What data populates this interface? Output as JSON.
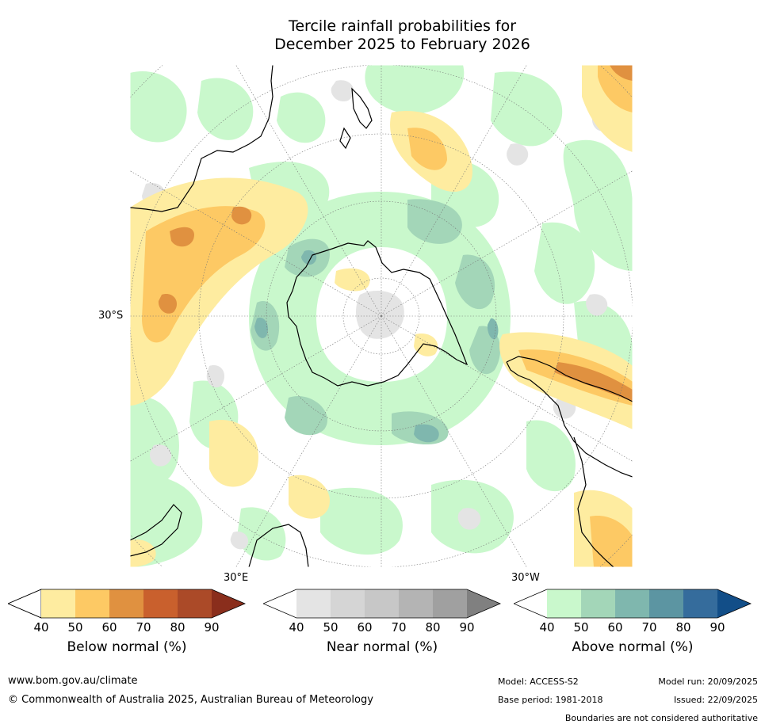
{
  "title": {
    "line1": "Tercile rainfall probabilities for",
    "line2": "December 2025 to February 2026"
  },
  "map": {
    "projection": "south-polar stereographic",
    "lat_label": "30°S",
    "lon_label_left": "30°E",
    "lon_label_right": "30°W"
  },
  "colorbars": [
    {
      "label": "Below normal (%)",
      "ticks": [
        "40",
        "50",
        "60",
        "70",
        "80",
        "90"
      ],
      "colors": [
        "#ffffff",
        "#feeca0",
        "#fdc964",
        "#e09140",
        "#c9602d",
        "#ab4a28",
        "#8a2e1c"
      ]
    },
    {
      "label": "Near normal (%)",
      "ticks": [
        "40",
        "50",
        "60",
        "70",
        "80",
        "90"
      ],
      "colors": [
        "#ffffff",
        "#e4e4e4",
        "#d5d5d5",
        "#c7c7c7",
        "#b4b4b4",
        "#a0a0a0",
        "#808080"
      ]
    },
    {
      "label": "Above normal (%)",
      "ticks": [
        "40",
        "50",
        "60",
        "70",
        "80",
        "90"
      ],
      "colors": [
        "#ffffff",
        "#c9f8cc",
        "#a3d6b8",
        "#7fb7ae",
        "#5c95a2",
        "#356c9c",
        "#124e88"
      ]
    }
  ],
  "footer": {
    "website": "www.bom.gov.au/climate",
    "copyright": "© Commonwealth of Australia 2025, Australian Bureau of Meteorology",
    "model": "Model: ACCESS-S2",
    "model_run": "Model run: 20/09/2025",
    "base_period": "Base period: 1981-2018",
    "issued": "Issued: 22/09/2025",
    "disclaimer": "Boundaries are not considered authoritative"
  }
}
